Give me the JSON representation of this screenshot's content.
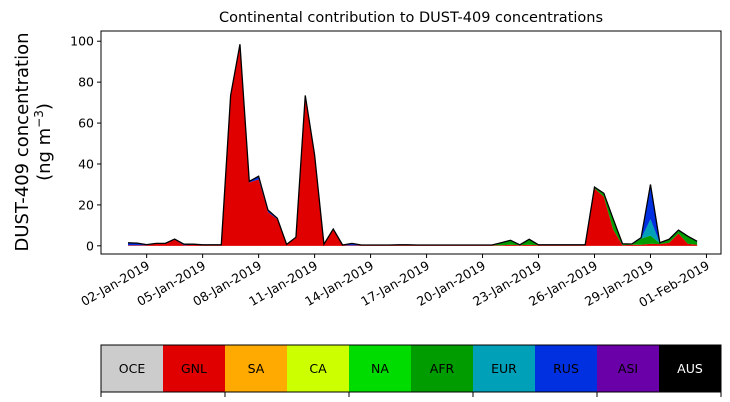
{
  "chart_data": {
    "type": "area",
    "title": "Continental contribution to DUST-409 concentrations",
    "ylabel_line1": "DUST-409 concentration",
    "ylabel_line2": "(ng m",
    "ylabel_sup": "−3",
    "ylabel_close": ")",
    "ylim": [
      -4,
      105
    ],
    "yticks": [
      0,
      20,
      40,
      60,
      80,
      100
    ],
    "xticks": [
      "02-Jan-2019",
      "05-Jan-2019",
      "08-Jan-2019",
      "11-Jan-2019",
      "14-Jan-2019",
      "17-Jan-2019",
      "20-Jan-2019",
      "23-Jan-2019",
      "26-Jan-2019",
      "29-Jan-2019",
      "01-Feb-2019"
    ],
    "x": [
      "01-Jan-2019 00h",
      "01-Jan-2019 12h",
      "02-Jan-2019 00h",
      "02-Jan-2019 12h",
      "03-Jan-2019 00h",
      "03-Jan-2019 12h",
      "04-Jan-2019 00h",
      "04-Jan-2019 12h",
      "05-Jan-2019 00h",
      "05-Jan-2019 12h",
      "06-Jan-2019 00h",
      "06-Jan-2019 12h",
      "07-Jan-2019 00h",
      "07-Jan-2019 12h",
      "08-Jan-2019 00h",
      "08-Jan-2019 12h",
      "09-Jan-2019 00h",
      "09-Jan-2019 12h",
      "10-Jan-2019 00h",
      "10-Jan-2019 12h",
      "11-Jan-2019 00h",
      "11-Jan-2019 12h",
      "12-Jan-2019 00h",
      "12-Jan-2019 12h",
      "13-Jan-2019 00h",
      "13-Jan-2019 12h",
      "14-Jan-2019 00h",
      "14-Jan-2019 12h",
      "15-Jan-2019 00h",
      "15-Jan-2019 12h",
      "16-Jan-2019 00h",
      "16-Jan-2019 12h",
      "17-Jan-2019 00h",
      "17-Jan-2019 12h",
      "18-Jan-2019 00h",
      "18-Jan-2019 12h",
      "19-Jan-2019 00h",
      "19-Jan-2019 12h",
      "20-Jan-2019 00h",
      "20-Jan-2019 12h",
      "21-Jan-2019 00h",
      "21-Jan-2019 12h",
      "22-Jan-2019 00h",
      "22-Jan-2019 12h",
      "23-Jan-2019 00h",
      "23-Jan-2019 12h",
      "24-Jan-2019 00h",
      "24-Jan-2019 12h",
      "25-Jan-2019 00h",
      "25-Jan-2019 12h",
      "26-Jan-2019 00h",
      "26-Jan-2019 12h",
      "27-Jan-2019 00h",
      "27-Jan-2019 12h",
      "28-Jan-2019 00h",
      "28-Jan-2019 12h",
      "29-Jan-2019 00h",
      "29-Jan-2019 12h",
      "30-Jan-2019 00h",
      "30-Jan-2019 12h",
      "31-Jan-2019 00h",
      "31-Jan-2019 12h"
    ],
    "series": [
      {
        "name": "GNL",
        "color": "#e00000",
        "values": [
          0.3,
          0.3,
          0.3,
          1.0,
          1.0,
          3.0,
          0.3,
          0.5,
          0.3,
          0.3,
          0.3,
          73.0,
          98.0,
          31.0,
          32.5,
          16.5,
          13.0,
          0.5,
          4.0,
          73.0,
          44.0,
          0.5,
          8.0,
          0.2,
          0.2,
          0.2,
          0.2,
          0.2,
          0.2,
          0.3,
          0.3,
          0.2,
          0.2,
          0.2,
          0.2,
          0.2,
          0.2,
          0.2,
          0.2,
          0.2,
          0.3,
          0.5,
          0.3,
          0.5,
          0.3,
          0.3,
          0.3,
          0.3,
          0.3,
          0.3,
          28.0,
          24.0,
          8.0,
          0.3,
          0.5,
          0.5,
          1.0,
          0.8,
          1.5,
          6.0,
          1.0,
          0.5
        ]
      },
      {
        "name": "AFR",
        "color": "#009c00",
        "values": [
          0.0,
          0.0,
          0.0,
          0.0,
          0.0,
          0.0,
          0.0,
          0.0,
          0.0,
          0.0,
          0.0,
          0.0,
          0.0,
          0.0,
          0.0,
          0.0,
          0.0,
          0.0,
          0.0,
          0.0,
          0.0,
          0.0,
          0.0,
          0.0,
          0.0,
          0.0,
          0.0,
          0.0,
          0.0,
          0.0,
          0.0,
          0.0,
          0.0,
          0.0,
          0.0,
          0.0,
          0.0,
          0.0,
          0.0,
          0.0,
          1.0,
          2.0,
          0.0,
          2.5,
          0.0,
          0.0,
          0.0,
          0.0,
          0.0,
          0.0,
          0.5,
          1.5,
          5.0,
          0.5,
          0.2,
          3.0,
          4.0,
          0.5,
          1.5,
          1.5,
          3.5,
          1.5
        ]
      },
      {
        "name": "EUR",
        "color": "#00a0b8",
        "values": [
          0.0,
          0.0,
          0.0,
          0.0,
          0.0,
          0.0,
          0.0,
          0.0,
          0.0,
          0.0,
          0.0,
          0.0,
          0.0,
          0.0,
          0.0,
          0.0,
          0.0,
          0.0,
          0.0,
          0.0,
          0.0,
          0.0,
          0.0,
          0.0,
          0.0,
          0.0,
          0.0,
          0.0,
          0.0,
          0.0,
          0.0,
          0.0,
          0.0,
          0.0,
          0.0,
          0.0,
          0.0,
          0.0,
          0.0,
          0.0,
          0.0,
          0.0,
          0.0,
          0.0,
          0.0,
          0.0,
          0.0,
          0.0,
          0.0,
          0.0,
          0.0,
          0.0,
          0.0,
          0.0,
          0.0,
          0.0,
          8.0,
          0.0,
          0.0,
          0.0,
          0.0,
          0.0
        ]
      },
      {
        "name": "RUS",
        "color": "#0030e0",
        "values": [
          1.2,
          1.0,
          0.3,
          0.2,
          0.2,
          0.3,
          0.5,
          0.3,
          0.2,
          0.2,
          0.2,
          0.5,
          0.5,
          0.5,
          1.5,
          1.0,
          0.5,
          0.2,
          0.2,
          0.5,
          0.5,
          0.3,
          0.2,
          0.2,
          1.0,
          0.2,
          0.2,
          0.2,
          0.2,
          0.2,
          0.2,
          0.2,
          0.2,
          0.2,
          0.2,
          0.2,
          0.2,
          0.2,
          0.2,
          0.2,
          0.2,
          0.2,
          0.2,
          0.2,
          0.2,
          0.2,
          0.2,
          0.2,
          0.2,
          0.2,
          0.2,
          0.2,
          0.2,
          0.2,
          0.2,
          0.5,
          17.0,
          0.2,
          0.2,
          0.2,
          0.2,
          0.2
        ]
      }
    ],
    "legend": {
      "placement": "bottom",
      "items": [
        {
          "label": "OCE",
          "color": "#cccccc",
          "text_color": "#000000"
        },
        {
          "label": "GNL",
          "color": "#e00000",
          "text_color": "#000000"
        },
        {
          "label": "SA",
          "color": "#ffaa00",
          "text_color": "#000000"
        },
        {
          "label": "CA",
          "color": "#ccff00",
          "text_color": "#000000"
        },
        {
          "label": "NA",
          "color": "#00dc00",
          "text_color": "#000000"
        },
        {
          "label": "AFR",
          "color": "#009c00",
          "text_color": "#000000"
        },
        {
          "label": "EUR",
          "color": "#00a0b8",
          "text_color": "#000000"
        },
        {
          "label": "RUS",
          "color": "#0030e0",
          "text_color": "#000000"
        },
        {
          "label": "ASI",
          "color": "#6a00a8",
          "text_color": "#000000"
        },
        {
          "label": "AUS",
          "color": "#000000",
          "text_color": "#ffffff"
        }
      ]
    },
    "grid": false
  }
}
